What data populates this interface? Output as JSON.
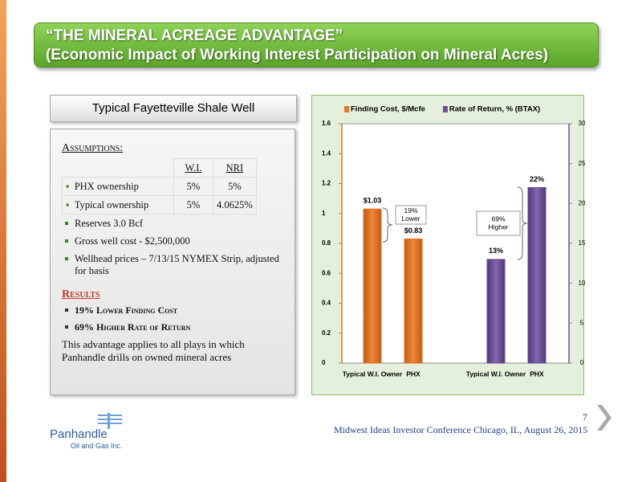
{
  "title": {
    "line1": "“THE MINERAL ACREAGE ADVANTAGE”",
    "line2": "(Economic Impact of Working Interest Participation on Mineral Acres)"
  },
  "panel": {
    "header": "Typical Fayetteville Shale Well",
    "assumptions_heading": "Assumptions:",
    "table": {
      "columns": [
        "W.I.",
        "NRI"
      ],
      "rows": [
        [
          "PHX ownership",
          "5%",
          "5%"
        ],
        [
          "Typical  ownership",
          "5%",
          "4.0625%"
        ]
      ]
    },
    "bullets": [
      "Reserves  3.0 Bcf",
      "Gross well cost - $2,500,000",
      "Wellhead prices – 7/13/15 NYMEX Strip, adjusted for basis"
    ],
    "results_heading": "Results",
    "results": [
      "19% Lower Finding Cost",
      "69% Higher Rate of Return"
    ],
    "note": "This advantage applies to all plays in which Panhandle drills on owned mineral acres"
  },
  "footer": "Midwest Ideas Investor  Conference Chicago, IL, August 26, 2015",
  "page_number": "7",
  "logo": {
    "name": "Panhandle",
    "sub": "Oil and Gas Inc."
  },
  "chart_data": {
    "type": "bar",
    "categories": [
      "Typical W.I. Owner",
      "PHX",
      "Typical W.I. Owner",
      "PHX"
    ],
    "series": [
      {
        "name": "Finding Cost, $/Mcfe",
        "color": "#e8761f",
        "values": [
          1.03,
          0.83,
          null,
          null
        ],
        "value_labels": [
          "$1.03",
          "$0.83",
          null,
          null
        ]
      },
      {
        "name": "Rate of Return, % (BTAX)",
        "color": "#6e4e9a",
        "axis": "y2",
        "values": [
          null,
          null,
          13,
          22
        ],
        "value_labels": [
          null,
          null,
          "13%",
          "22%"
        ]
      }
    ],
    "ylim": [
      0,
      1.6
    ],
    "yticks": [
      0,
      0.2,
      0.4,
      0.6,
      0.8,
      1,
      1.2,
      1.4,
      1.6
    ],
    "y2lim": [
      0,
      30
    ],
    "y2ticks": [
      0,
      5,
      10,
      15,
      20,
      25,
      30
    ],
    "annotations": [
      [
        "19%",
        "Lower"
      ],
      [
        "69%",
        "Higher"
      ]
    ],
    "grid": false,
    "legend": "top"
  }
}
